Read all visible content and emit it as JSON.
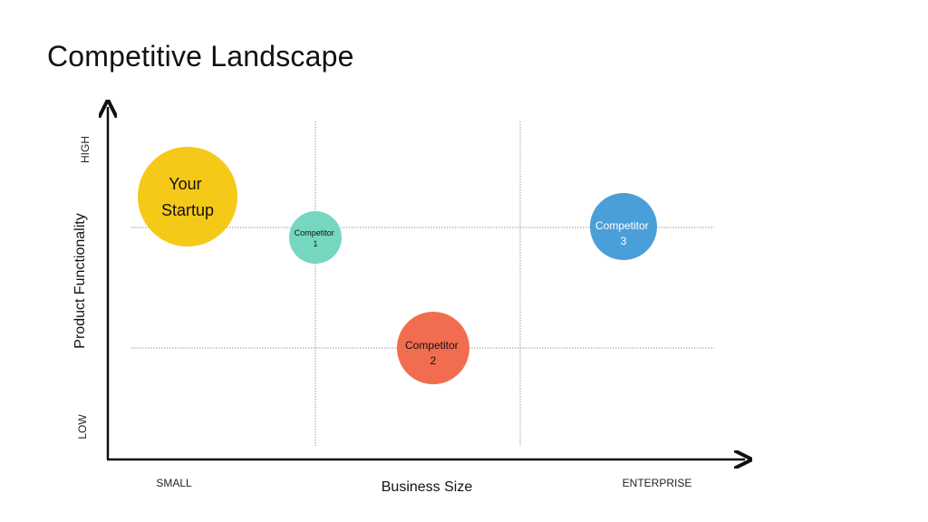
{
  "slide": {
    "title": "Competitive Landscape"
  },
  "axes": {
    "x_title": "Business Size",
    "y_title": "Product Functionality",
    "x_low": "SMALL",
    "x_high": "ENTERPRISE",
    "y_low": "LOW",
    "y_high": "HIGH"
  },
  "bubbles": [
    {
      "line1": "Your",
      "line2": "Startup",
      "color": "#f5c917",
      "text_color": "#111111"
    },
    {
      "line1": "Competitor",
      "line2": "1",
      "color": "#76d7c0",
      "text_color": "#111111"
    },
    {
      "line1": "Competitor",
      "line2": "2",
      "color": "#f26d4f",
      "text_color": "#111111"
    },
    {
      "line1": "Competitor",
      "line2": "3",
      "color": "#4b9fd8",
      "text_color": "#ffffff"
    }
  ]
}
